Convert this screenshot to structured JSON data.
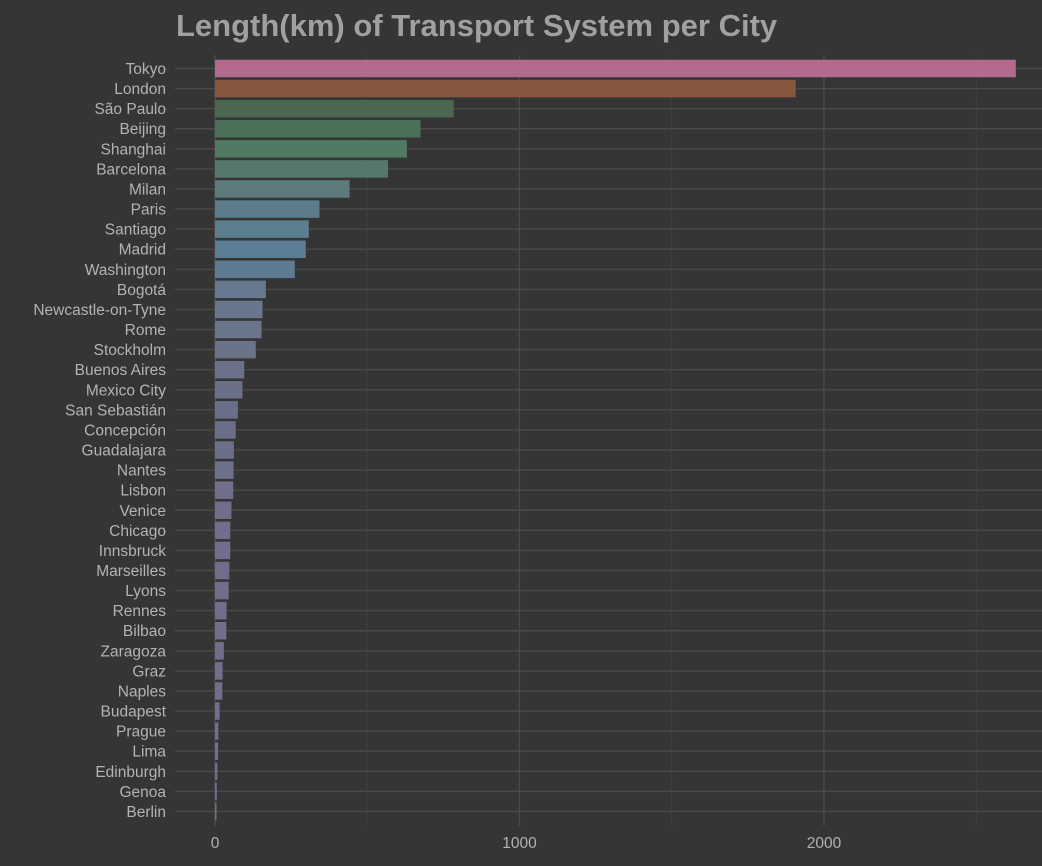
{
  "chart_data": {
    "type": "bar",
    "orientation": "horizontal",
    "title": "Length(km) of Transport System per City",
    "xlabel": "",
    "ylabel": "",
    "xlim": [
      0,
      2700
    ],
    "x_ticks": [
      0,
      1000,
      2000
    ],
    "grid": true,
    "legend": "none",
    "categories": [
      "Tokyo",
      "London",
      "São Paulo",
      "Beijing",
      "Shanghai",
      "Barcelona",
      "Milan",
      "Paris",
      "Santiago",
      "Madrid",
      "Washington",
      "Bogotá",
      "Newcastle-on-Tyne",
      "Rome",
      "Stockholm",
      "Buenos Aires",
      "Mexico City",
      "San Sebastián",
      "Concepción",
      "Guadalajara",
      "Nantes",
      "Lisbon",
      "Venice",
      "Chicago",
      "Innsbruck",
      "Marseilles",
      "Lyons",
      "Rennes",
      "Bilbao",
      "Zaragoza",
      "Graz",
      "Naples",
      "Budapest",
      "Prague",
      "Lima",
      "Edinburgh",
      "Genoa",
      "Berlin"
    ],
    "values": [
      2630,
      1907,
      784,
      675,
      630,
      568,
      442,
      343,
      308,
      298,
      262,
      167,
      156,
      153,
      134,
      96,
      90,
      75,
      68,
      62,
      61,
      60,
      54,
      50,
      50,
      47,
      45,
      38,
      37,
      29,
      25,
      24,
      15,
      11,
      10,
      8,
      6,
      3
    ],
    "colors": [
      "#b26b8e",
      "#85573f",
      "#4d6650",
      "#4d7058",
      "#517a62",
      "#56776c",
      "#5d7b7c",
      "#5c7e8c",
      "#5c7f90",
      "#5c7e94",
      "#5e7b93",
      "#667990",
      "#68778e",
      "#697689",
      "#6a7387",
      "#6a7189",
      "#6a7088",
      "#6a6f89",
      "#6c6f89",
      "#6d6f8a",
      "#6e6f8b",
      "#6f6f8c",
      "#6f6e8b",
      "#706e8c",
      "#716f8d",
      "#716e8c",
      "#716e8c",
      "#726d8c",
      "#726e8c",
      "#736d8b",
      "#736d8b",
      "#746e8c",
      "#746e8c",
      "#746d8c",
      "#746d8c",
      "#746d8c",
      "#746d8c",
      "#746d8c"
    ]
  }
}
